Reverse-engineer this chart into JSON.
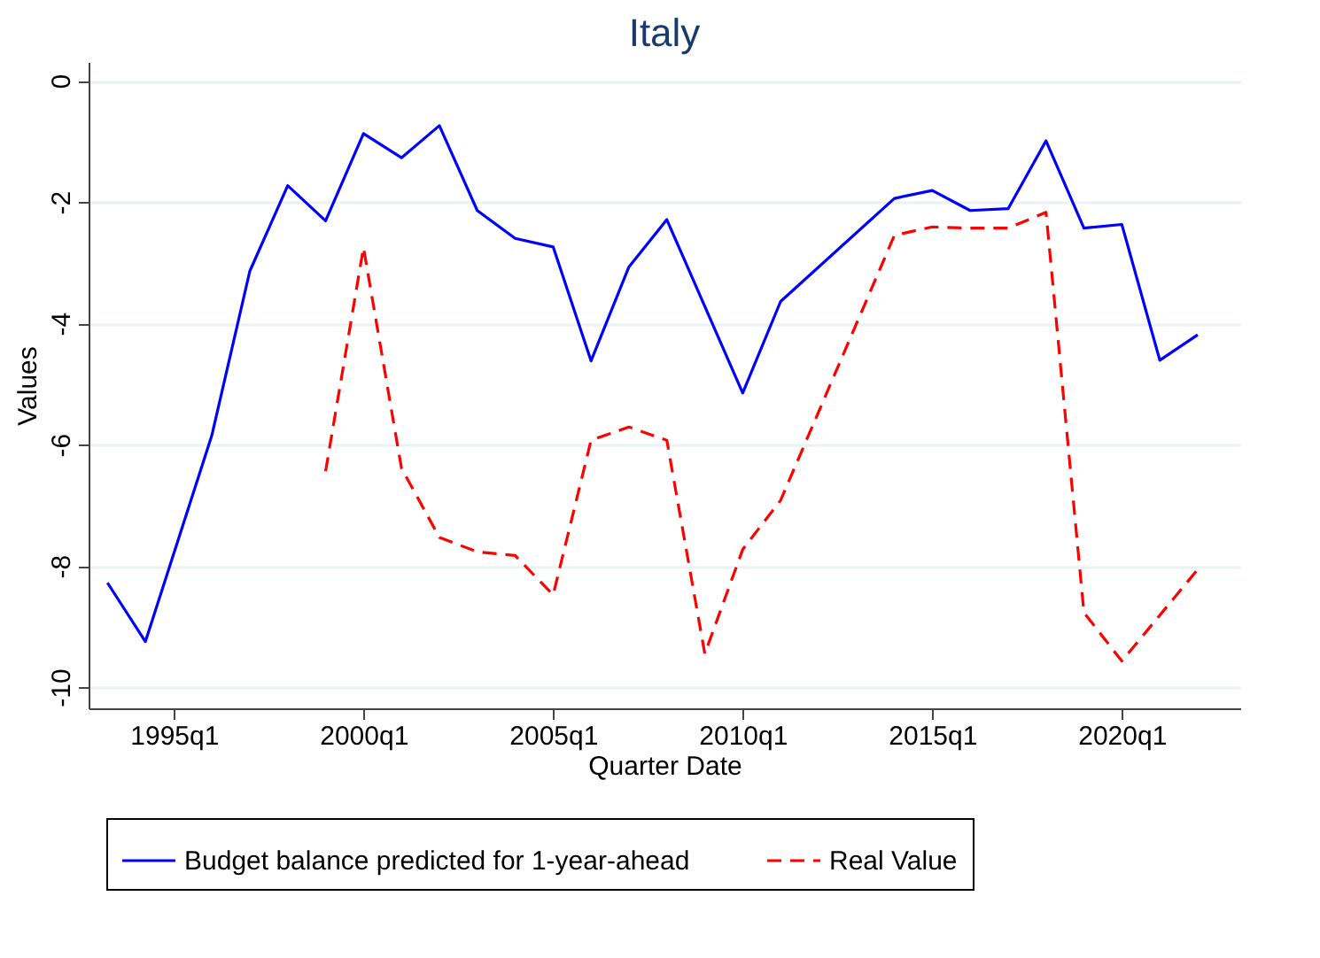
{
  "chart_data": {
    "type": "line",
    "title": "Italy",
    "xlabel": "Quarter Date",
    "ylabel": "Values",
    "xlim": [
      "1992-10-01",
      "2023-02-15"
    ],
    "ylim": [
      -10.35,
      0.31
    ],
    "xticks": [
      {
        "value": "1995-01",
        "label": "1995q1"
      },
      {
        "value": "2000-01",
        "label": "2000q1"
      },
      {
        "value": "2005-01",
        "label": "2005q1"
      },
      {
        "value": "2010-01",
        "label": "2010q1"
      },
      {
        "value": "2015-01",
        "label": "2015q1"
      },
      {
        "value": "2020-01",
        "label": "2020q1"
      }
    ],
    "yticks": [
      0,
      -2,
      -4,
      -6,
      -8,
      -10
    ],
    "grid": "y",
    "legend": "bottom",
    "series": [
      {
        "name": "Budget balance predicted for 1-year-ahead",
        "color": "#0000ff",
        "line_style": "solid",
        "x": [
          "1993-04",
          "1994-04",
          "1996-01",
          "1997-01",
          "1998-01",
          "1999-01",
          "2000-01",
          "2001-01",
          "2002-01",
          "2003-01",
          "2004-01",
          "2005-01",
          "2006-01",
          "2007-01",
          "2008-01",
          "2010-01",
          "2011-01",
          "2014-01",
          "2015-01",
          "2016-01",
          "2017-01",
          "2018-01",
          "2019-01",
          "2020-01",
          "2021-01",
          "2022-01"
        ],
        "values": [
          -8.28,
          -9.25,
          -5.85,
          -3.14,
          -1.73,
          -2.31,
          -0.87,
          -1.27,
          -0.74,
          -2.14,
          -2.6,
          -2.74,
          -4.62,
          -3.07,
          -2.29,
          -5.15,
          -3.64,
          -1.94,
          -1.81,
          -2.14,
          -2.11,
          -0.99,
          -2.43,
          -2.37,
          -4.61,
          -4.19
        ]
      },
      {
        "name": "Real Value",
        "color": "#ff0000",
        "line_style": "dashed",
        "x": [
          "1999-01",
          "2000-01",
          "2001-01",
          "2002-01",
          "2003-01",
          "2004-01",
          "2005-01",
          "2006-01",
          "2007-01",
          "2008-01",
          "2009-01",
          "2010-01",
          "2011-01",
          "2014-01",
          "2015-01",
          "2016-01",
          "2017-01",
          "2018-01",
          "2019-01",
          "2020-01",
          "2022-01"
        ],
        "values": [
          -6.44,
          -2.75,
          -6.39,
          -7.53,
          -7.77,
          -7.83,
          -8.48,
          -5.93,
          -5.71,
          -5.93,
          -9.45,
          -7.73,
          -6.92,
          -2.55,
          -2.41,
          -2.43,
          -2.43,
          -2.17,
          -8.77,
          -9.57,
          -8.06
        ]
      }
    ]
  }
}
